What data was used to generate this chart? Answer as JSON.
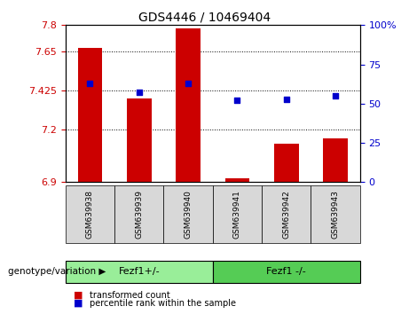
{
  "title": "GDS4446 / 10469404",
  "samples": [
    "GSM639938",
    "GSM639939",
    "GSM639940",
    "GSM639941",
    "GSM639942",
    "GSM639943"
  ],
  "bar_values": [
    7.67,
    7.38,
    7.78,
    6.92,
    7.12,
    7.15
  ],
  "scatter_values": [
    63,
    57,
    63,
    52,
    53,
    55
  ],
  "ylim_left": [
    6.9,
    7.8
  ],
  "ylim_right": [
    0,
    100
  ],
  "yticks_left": [
    6.9,
    7.2,
    7.425,
    7.65,
    7.8
  ],
  "ytick_labels_left": [
    "6.9",
    "7.2",
    "7.425",
    "7.65",
    "7.8"
  ],
  "yticks_right": [
    0,
    25,
    50,
    75,
    100
  ],
  "ytick_labels_right": [
    "0",
    "25",
    "50",
    "75",
    "100%"
  ],
  "bar_color": "#cc0000",
  "scatter_color": "#0000cc",
  "bar_bottom": 6.9,
  "groups": [
    {
      "label": "Fezf1+/-",
      "indices": [
        0,
        1,
        2
      ],
      "color": "#99ee99"
    },
    {
      "label": "Fezf1 -/-",
      "indices": [
        3,
        4,
        5
      ],
      "color": "#55cc55"
    }
  ],
  "group_label_prefix": "genotype/variation",
  "legend_items": [
    {
      "label": "transformed count",
      "color": "#cc0000"
    },
    {
      "label": "percentile rank within the sample",
      "color": "#0000cc"
    }
  ],
  "grid_color": "black",
  "grid_linestyle": "dotted",
  "bar_width": 0.5,
  "bg_plot": "#ffffff",
  "bg_xticklabel": "#dddddd",
  "left_tick_color": "#cc0000",
  "right_tick_color": "#0000cc"
}
